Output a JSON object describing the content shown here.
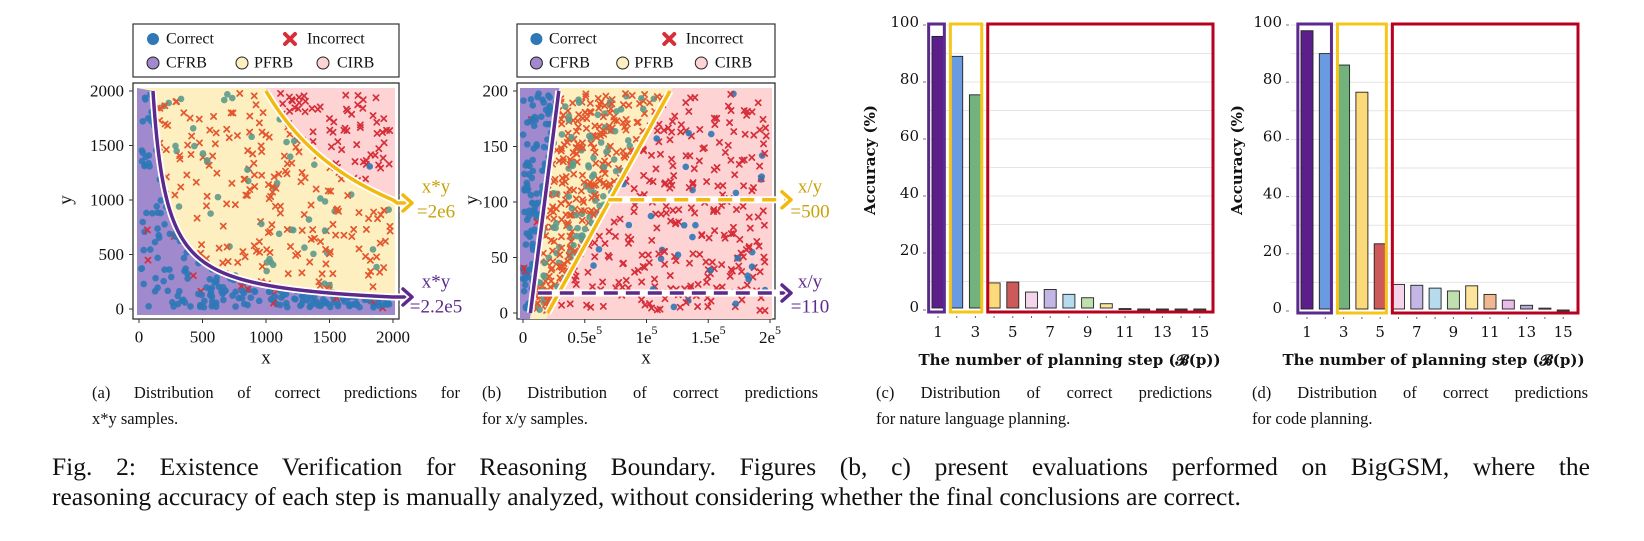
{
  "figure_caption": {
    "line1": "Fig. 2: Existence Verification for Reasoning Boundary. Figures (b, c) present evaluations performed on BigGSM, where the",
    "line2": "reasoning accuracy of each step is manually analyzed, without considering whether the final conclusions are correct."
  },
  "colors": {
    "correct": "#2e78b7",
    "correct_in_pfrb": "#5e9a8c",
    "incorrect": "#d62f3a",
    "incorrect_in_pfrb": "#e4572e",
    "cfrb": "#a089cc",
    "pfrb": "#fdefc0",
    "cirb": "#fdd3d3",
    "purple_boundary": "#5b2a8c",
    "gold_boundary": "#f2b90f",
    "red_box": "#b8001f"
  },
  "legend": {
    "correct": "Correct",
    "incorrect": "Incorrect",
    "cfrb": "CFRB",
    "pfrb": "PFRB",
    "cirb": "CIRB"
  },
  "chart_data": [
    {
      "id": "a",
      "type": "scatter",
      "xlabel": "x",
      "ylabel": "y",
      "xlim": [
        0,
        2000
      ],
      "ylim": [
        0,
        2000
      ],
      "xticks": [
        "0",
        "500",
        "1000",
        "1500",
        "2000"
      ],
      "yticks": [
        "0",
        "500",
        "1000",
        "1500",
        "2000"
      ],
      "legend_position": "top",
      "regions": [
        "CFRB: x*y < 2.2e5",
        "PFRB: 2.2e5 <= x*y < 2e6",
        "CIRB: x*y >= 2e6"
      ],
      "boundaries": [
        {
          "line1": "x*y",
          "line2": "=2e6",
          "value": 2000000,
          "color": "#f2b90f"
        },
        {
          "line1": "x*y",
          "line2": "=2.2e5",
          "value": 220000,
          "color": "#5b2a8c"
        }
      ],
      "caption": {
        "line1": "(a) Distribution of correct predictions for",
        "line2": "x*y samples."
      }
    },
    {
      "id": "b",
      "type": "scatter",
      "xlabel": "x",
      "ylabel": "y",
      "xlim": [
        0,
        200000
      ],
      "ylim": [
        0,
        200
      ],
      "xticks": [
        {
          "base": "0",
          "exp": ""
        },
        {
          "base": "0.5e",
          "exp": "5"
        },
        {
          "base": "1e",
          "exp": "5"
        },
        {
          "base": "1.5e",
          "exp": "5"
        },
        {
          "base": "2e",
          "exp": "5"
        }
      ],
      "yticks": [
        "0",
        "50",
        "100",
        "150",
        "200"
      ],
      "legend_position": "top",
      "boundaries": [
        {
          "line1": "x/y",
          "line2": "=500",
          "value": 500,
          "color": "#f2b90f",
          "line": [
            [
              20000,
              0
            ],
            [
              119000,
              200
            ]
          ],
          "dashed_y": 102,
          "dashed_from_x": 69000
        },
        {
          "line1": "x/y",
          "line2": "=110",
          "value": 110,
          "color": "#5b2a8c",
          "line": [
            [
              6000,
              0
            ],
            [
              29000,
              200
            ]
          ],
          "dashed_y": 18,
          "dashed_from_x": 12000
        }
      ],
      "caption": {
        "line1": "(b) Distribution of correct predictions",
        "line2": "for x/y samples."
      }
    },
    {
      "id": "c",
      "type": "bar",
      "xlabel": "The number of planning step (𝓑(p))",
      "ylabel": "Accuracy (%)",
      "ylim": [
        0,
        100
      ],
      "grid": true,
      "categories": [
        1,
        2,
        3,
        4,
        5,
        6,
        7,
        8,
        9,
        10,
        11,
        12,
        13,
        14,
        15
      ],
      "xtick_labels": [
        "1",
        "3",
        "5",
        "7",
        "9",
        "11",
        "13",
        "15"
      ],
      "yticks": [
        "0",
        "20",
        "40",
        "60",
        "80",
        "100"
      ],
      "values": [
        96,
        89,
        75.5,
        9.5,
        9.8,
        6.3,
        7.2,
        5.5,
        4.3,
        2.2,
        0.5,
        0,
        0,
        0,
        0
      ],
      "bar_colors": [
        "#5b1f8c",
        "#6a9be0",
        "#72b27c",
        "#fcd979",
        "#cc5a5a",
        "#f4d4ea",
        "#c4b6e4",
        "#b6dbee",
        "#bfe0ae",
        "#fce49a",
        "#f6d2d6",
        "#e8bce8",
        "#b0aed8",
        "#b6dbee",
        "#bfe0ae"
      ],
      "groups": [
        {
          "steps": [
            1,
            1
          ],
          "color": "#5b2a8c"
        },
        {
          "steps": [
            2,
            3
          ],
          "color": "#f5c518"
        },
        {
          "steps": [
            4,
            15
          ],
          "color": "#b8001f"
        }
      ],
      "caption": {
        "line1": "(c) Distribution of correct predictions",
        "line2": "for nature language planning."
      }
    },
    {
      "id": "d",
      "type": "bar",
      "xlabel": "The number of planning step (𝓑(p))",
      "ylabel": "Accuracy (%)",
      "ylim": [
        0,
        100
      ],
      "grid": true,
      "categories": [
        1,
        2,
        3,
        4,
        5,
        6,
        7,
        8,
        9,
        10,
        11,
        12,
        13,
        14,
        15
      ],
      "xtick_labels": [
        "1",
        "3",
        "5",
        "7",
        "9",
        "11",
        "13",
        "15"
      ],
      "yticks": [
        "0",
        "20",
        "40",
        "60",
        "80",
        "100"
      ],
      "values": [
        98,
        90,
        86,
        76.5,
        23.5,
        9.3,
        9,
        8,
        7,
        8.8,
        5.8,
        3.8,
        2,
        1,
        0.3
      ],
      "bar_colors": [
        "#5b1f8c",
        "#6a9be0",
        "#72b27c",
        "#fcd979",
        "#cc5a5a",
        "#f4d4ea",
        "#c4b6e4",
        "#b6dbee",
        "#bfe0ae",
        "#fce49a",
        "#f0b890",
        "#e8bce8",
        "#b0aed8",
        "#b6dbee",
        "#bfe0ae"
      ],
      "groups": [
        {
          "steps": [
            1,
            2
          ],
          "color": "#5b2a8c"
        },
        {
          "steps": [
            3,
            5
          ],
          "color": "#f5c518"
        },
        {
          "steps": [
            6,
            15
          ],
          "color": "#b8001f"
        }
      ],
      "caption": {
        "line1": "(d) Distribution of correct predictions",
        "line2": "for code planning."
      }
    }
  ]
}
